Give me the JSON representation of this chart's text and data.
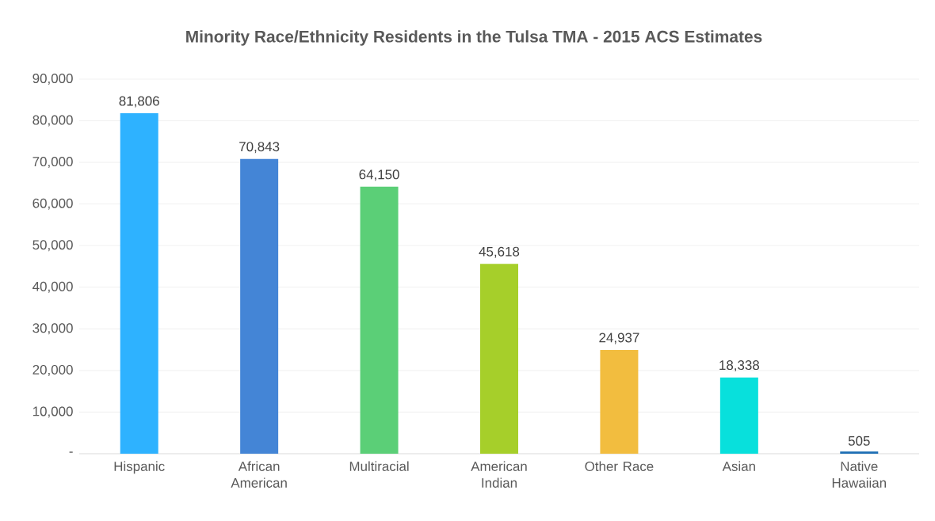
{
  "chart_data": {
    "type": "bar",
    "title": "Minority Race/Ethnicity Residents in the Tulsa TMA - 2015 ACS Estimates",
    "categories": [
      "Hispanic",
      "African American",
      "Multiracial",
      "American Indian",
      "Other Race",
      "Asian",
      "Native Hawaiian"
    ],
    "values": [
      81806,
      70843,
      64150,
      45618,
      24937,
      18338,
      505
    ],
    "colors": [
      "#2eb2ff",
      "#4485d6",
      "#5bcf77",
      "#a6cf2a",
      "#f2bd3f",
      "#08e0dc",
      "#1e6fb5"
    ],
    "ylim": [
      0,
      90000
    ],
    "yticks": [
      {
        "value": 0,
        "label": "-"
      },
      {
        "value": 10000,
        "label": "10,000"
      },
      {
        "value": 20000,
        "label": "20,000"
      },
      {
        "value": 30000,
        "label": "30,000"
      },
      {
        "value": 40000,
        "label": "40,000"
      },
      {
        "value": 50000,
        "label": "50,000"
      },
      {
        "value": 60000,
        "label": "60,000"
      },
      {
        "value": 70000,
        "label": "70,000"
      },
      {
        "value": 80000,
        "label": "80,000"
      },
      {
        "value": 90000,
        "label": "90,000"
      }
    ],
    "value_labels": [
      "81,806",
      "70,843",
      "64,150",
      "45,618",
      "24,937",
      "18,338",
      "505"
    ],
    "grid": "y"
  }
}
